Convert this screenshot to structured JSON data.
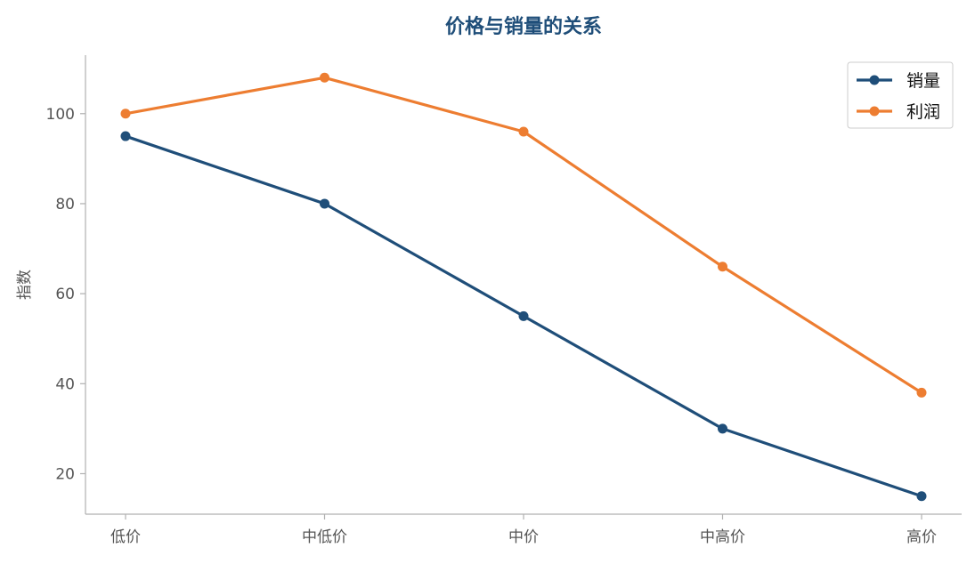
{
  "chart_data": {
    "type": "line",
    "title": "价格与销量的关系",
    "xlabel": "",
    "ylabel": "指数",
    "categories": [
      "低价",
      "中低价",
      "中价",
      "中高价",
      "高价"
    ],
    "ylim": [
      11,
      113
    ],
    "yticks": [
      20,
      40,
      60,
      80,
      100
    ],
    "grid": false,
    "legend_position": "top-right",
    "series": [
      {
        "name": "销量",
        "values": [
          95,
          80,
          55,
          30,
          15
        ],
        "color": "#1f4e79",
        "marker": "circle"
      },
      {
        "name": "利润",
        "values": [
          100,
          108,
          96,
          66,
          38
        ],
        "color": "#ed7d31",
        "marker": "circle"
      }
    ],
    "colors": {
      "title": "#1f4e79",
      "axis": "#b0b0b0",
      "tick_text": "#555555"
    }
  }
}
